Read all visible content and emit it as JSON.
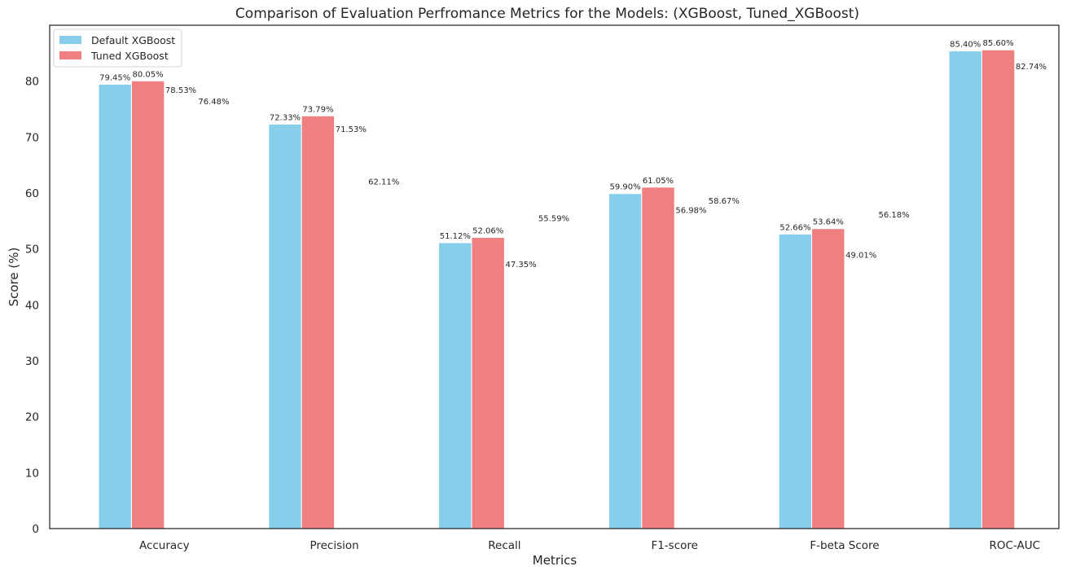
{
  "chart_data": {
    "type": "bar",
    "title": "Comparison of Evaluation Perfromance Metrics for the Models: (XGBoost, Tuned_XGBoost)",
    "xlabel": "Metrics",
    "ylabel": "Score (%)",
    "ylim": [
      0,
      90
    ],
    "yticks": [
      0,
      10,
      20,
      30,
      40,
      50,
      60,
      70,
      80
    ],
    "categories": [
      "Accuracy",
      "Precision",
      "Recall",
      "F1-score",
      "F-beta Score",
      "ROC-AUC"
    ],
    "series": [
      {
        "name": "Default XGBoost",
        "color": "#87ceeb",
        "values": [
          79.45,
          72.33,
          51.12,
          59.9,
          52.66,
          85.4
        ],
        "labels": [
          "79.45%",
          "72.33%",
          "51.12%",
          "59.90%",
          "52.66%",
          "85.40%"
        ]
      },
      {
        "name": "Tuned XGBoost",
        "color": "#f08080",
        "values": [
          80.05,
          73.79,
          52.06,
          61.05,
          53.64,
          85.6
        ],
        "labels": [
          "80.05%",
          "73.79%",
          "52.06%",
          "61.05%",
          "53.64%",
          "85.60%"
        ]
      }
    ],
    "extra_labels": [
      {
        "category": "Accuracy",
        "values": [
          78.53,
          76.48
        ],
        "labels": [
          "78.53%",
          "76.48%"
        ]
      },
      {
        "category": "Precision",
        "values": [
          71.53,
          62.11
        ],
        "labels": [
          "71.53%",
          "62.11%"
        ]
      },
      {
        "category": "Recall",
        "values": [
          47.35,
          55.59
        ],
        "labels": [
          "47.35%",
          "55.59%"
        ]
      },
      {
        "category": "F1-score",
        "values": [
          56.98,
          58.67
        ],
        "labels": [
          "56.98%",
          "58.67%"
        ]
      },
      {
        "category": "F-beta Score",
        "values": [
          49.01,
          56.18
        ],
        "labels": [
          "49.01%",
          "56.18%"
        ]
      },
      {
        "category": "ROC-AUC",
        "values": [
          82.74
        ],
        "labels": [
          "82.74%"
        ]
      }
    ],
    "legend": "top-left",
    "grid": false
  }
}
